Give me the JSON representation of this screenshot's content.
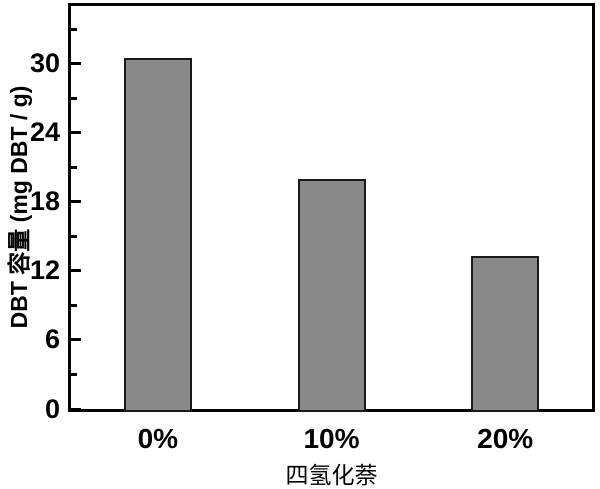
{
  "chart_data": {
    "type": "bar",
    "title": "",
    "categories": [
      "0%",
      "10%",
      "20%"
    ],
    "values": [
      30.5,
      20.0,
      13.3
    ],
    "xlabel": "四氢化萘",
    "ylabel": "DBT 容量 (mg DBT / g)",
    "ylim": [
      0,
      35
    ],
    "yticks_major": [
      0,
      6,
      12,
      18,
      24,
      30
    ],
    "yticks_minor": [
      3,
      9,
      15,
      21,
      27,
      33
    ],
    "grid": false,
    "legend_position": "none",
    "colors": {
      "bar_fill": "#8a8a8a",
      "bar_border": "#1a1a1a",
      "axis": "#000000",
      "text": "#000000"
    }
  }
}
